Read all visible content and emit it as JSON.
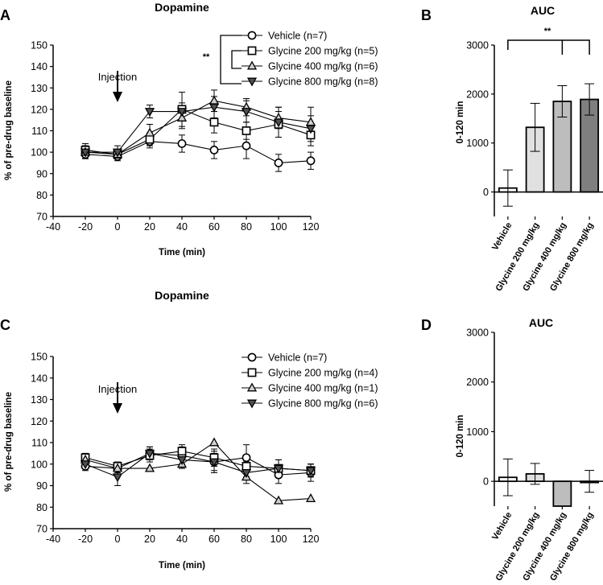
{
  "chart_data": [
    {
      "panel": "A",
      "type": "line",
      "title": "Dopamine",
      "xlabel": "Time (min)",
      "ylabel": "% of pre-drug baseline",
      "xlim": [
        -40,
        120
      ],
      "ylim": [
        70,
        150
      ],
      "xticks": [
        -40,
        -20,
        0,
        20,
        40,
        60,
        80,
        100,
        120
      ],
      "yticks": [
        70,
        80,
        90,
        100,
        110,
        120,
        130,
        140,
        150
      ],
      "x": [
        -20,
        0,
        20,
        40,
        60,
        80,
        100,
        120
      ],
      "annotation": "Injection",
      "significance": "**",
      "series": [
        {
          "name": "Vehicle (n=7)",
          "marker": "circle",
          "values": [
            99,
            98,
            105,
            104,
            101,
            103,
            95,
            96
          ],
          "errors": [
            2,
            2,
            3,
            4,
            4,
            6,
            4,
            4
          ]
        },
        {
          "name": "Glycine 200 mg/kg (n=5)",
          "marker": "square",
          "values": [
            101,
            99,
            106,
            120,
            114,
            110,
            113,
            108
          ],
          "errors": [
            3,
            2,
            3,
            8,
            5,
            4,
            6,
            5
          ]
        },
        {
          "name": "Glycine 400 mg/kg (n=6)",
          "marker": "triangle-up",
          "values": [
            100,
            99,
            109,
            116,
            124,
            121,
            116,
            114
          ],
          "errors": [
            3,
            2,
            4,
            5,
            5,
            4,
            5,
            7
          ]
        },
        {
          "name": "Glycine 800 mg/kg (n=8)",
          "marker": "triangle-down",
          "values": [
            100,
            100,
            119,
            119,
            121,
            119,
            114,
            111
          ],
          "errors": [
            3,
            3,
            3,
            4,
            5,
            5,
            7,
            6
          ]
        }
      ]
    },
    {
      "panel": "B",
      "type": "bar",
      "title": "AUC",
      "ylabel": "0-120 min",
      "ylim": [
        -500,
        3000
      ],
      "yticks": [
        0,
        1000,
        2000,
        3000
      ],
      "categories": [
        "Vehicle",
        "Glycine 200 mg/kg",
        "Glycine 400 mg/kg",
        "Glycine 800 mg/kg"
      ],
      "values": [
        80,
        1320,
        1850,
        1890
      ],
      "errors": [
        370,
        490,
        320,
        320
      ],
      "colors": [
        "#ffffff",
        "#e0e0e0",
        "#bdbdbd",
        "#7f7f7f"
      ],
      "significance": "**"
    },
    {
      "panel": "C",
      "type": "line",
      "title": "Dopamine",
      "xlabel": "Time (min)",
      "ylabel": "% of pre-drug baseline",
      "xlim": [
        -40,
        120
      ],
      "ylim": [
        70,
        150
      ],
      "xticks": [
        -40,
        -20,
        0,
        20,
        40,
        60,
        80,
        100,
        120
      ],
      "yticks": [
        70,
        80,
        90,
        100,
        110,
        120,
        130,
        140,
        150
      ],
      "x": [
        -20,
        0,
        20,
        40,
        60,
        80,
        100,
        120
      ],
      "annotation": "Injection",
      "series": [
        {
          "name": "Vehicle (n=7)",
          "marker": "circle",
          "values": [
            99,
            98,
            105,
            104,
            101,
            103,
            95,
            96
          ],
          "errors": [
            2,
            2,
            3,
            4,
            4,
            6,
            4,
            4
          ]
        },
        {
          "name": "Glycine 200 mg/kg (n=4)",
          "marker": "square",
          "values": [
            103,
            99,
            104,
            106,
            103,
            99,
            98,
            97
          ],
          "errors": [
            2,
            2,
            3,
            3,
            4,
            5,
            4,
            3
          ]
        },
        {
          "name": "Glycine 400 mg/kg (n=1)",
          "marker": "triangle-up",
          "values": [
            102,
            98,
            98,
            100,
            110,
            94,
            83,
            84
          ],
          "errors": [
            0,
            0,
            0,
            0,
            0,
            0,
            0,
            0
          ]
        },
        {
          "name": "Glycine 800 mg/kg (n=6)",
          "marker": "triangle-down",
          "values": [
            100,
            94,
            105,
            102,
            101,
            96,
            98,
            97
          ],
          "errors": [
            2,
            4,
            3,
            4,
            5,
            5,
            4,
            3
          ]
        }
      ]
    },
    {
      "panel": "D",
      "type": "bar",
      "title": "AUC",
      "ylabel": "0-120 min",
      "ylim": [
        -500,
        3000
      ],
      "yticks": [
        0,
        1000,
        2000,
        3000
      ],
      "categories": [
        "Vehicle",
        "Glycine 200 mg/kg",
        "Glycine 400 mg/kg",
        "Glycine 800 mg/kg"
      ],
      "values": [
        80,
        150,
        -500,
        0
      ],
      "errors": [
        370,
        210,
        0,
        220
      ],
      "colors": [
        "#ffffff",
        "#e0e0e0",
        "#bdbdbd",
        "#7f7f7f"
      ]
    }
  ]
}
